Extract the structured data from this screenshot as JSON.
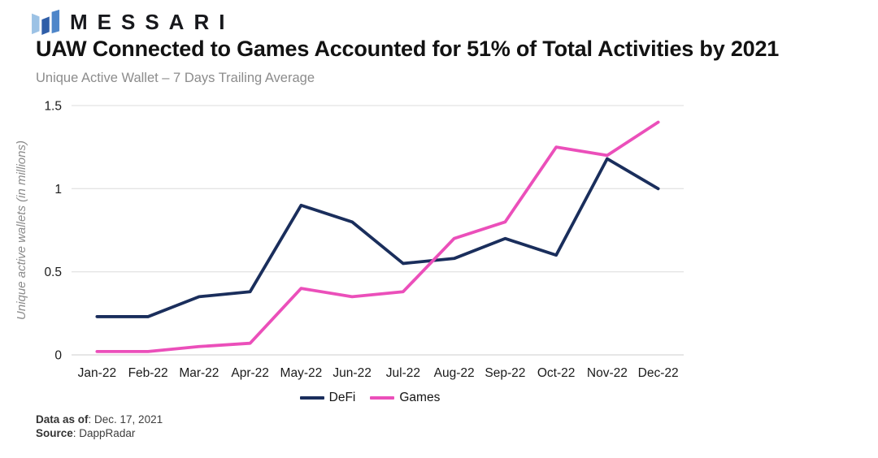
{
  "brand": {
    "logo_text": "MESSARI",
    "logo_colors": {
      "bar_left": "#9CC2E5",
      "bar_mid": "#2F5EA8",
      "bar_right": "#4E86C9"
    }
  },
  "header": {
    "title": "UAW Connected to Games Accounted for 51% of Total Activities by 2021",
    "subtitle": "Unique Active Wallet – 7 Days Trailing Average"
  },
  "chart_data": {
    "type": "line",
    "title": "UAW Connected to Games Accounted for 51% of Total Activities by 2021",
    "categories": [
      "Jan-22",
      "Feb-22",
      "Mar-22",
      "Apr-22",
      "May-22",
      "Jun-22",
      "Jul-22",
      "Aug-22",
      "Sep-22",
      "Oct-22",
      "Nov-22",
      "Dec-22"
    ],
    "series": [
      {
        "name": "DeFi",
        "color": "#1A2E5C",
        "values": [
          0.23,
          0.23,
          0.35,
          0.38,
          0.9,
          0.8,
          0.55,
          0.58,
          0.7,
          0.6,
          1.18,
          1.0
        ]
      },
      {
        "name": "Games",
        "color": "#EB4FBA",
        "values": [
          0.02,
          0.02,
          0.05,
          0.07,
          0.4,
          0.35,
          0.38,
          0.7,
          0.8,
          1.25,
          1.2,
          1.4
        ]
      }
    ],
    "xlabel": "",
    "ylabel": "Unique active wallets (in millions)",
    "yticks": [
      0,
      0.5,
      1,
      1.5
    ],
    "ylim": [
      0,
      1.5
    ],
    "grid": true,
    "grid_color": "#E4E4E4",
    "axis_color": "#D6D6D6",
    "legend_position": "bottom"
  },
  "footer": {
    "data_as_of_label": "Data as of",
    "data_as_of_value": ": Dec. 17, 2021",
    "source_label": "Source",
    "source_value": ": DappRadar"
  }
}
